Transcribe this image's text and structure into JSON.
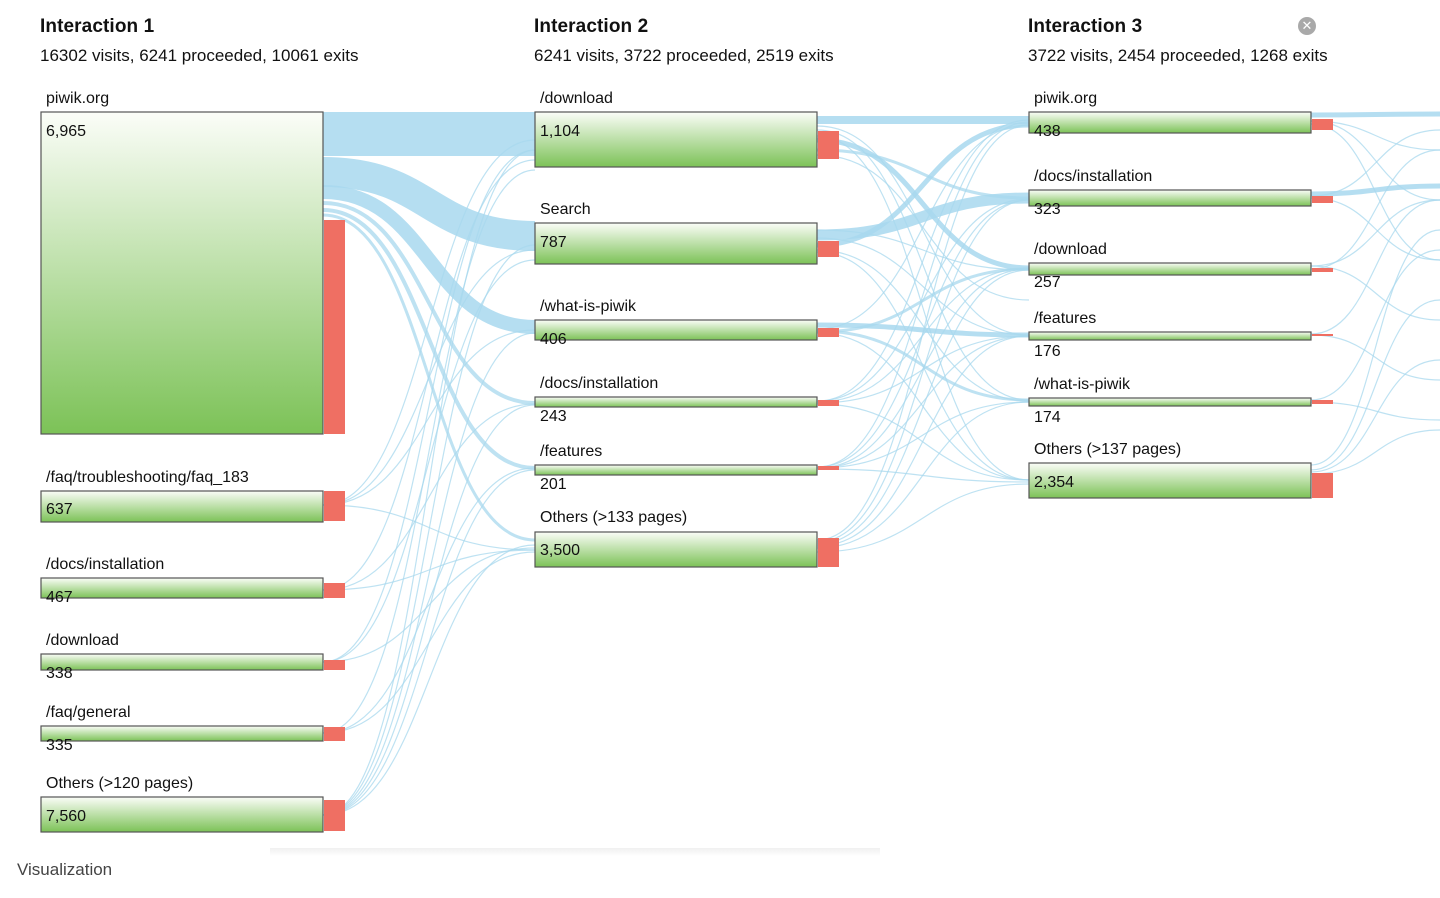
{
  "colors": {
    "link": "#a8d8ee",
    "node_top": "#fbfdf8",
    "node_bottom": "#7cc257",
    "node_border": "#555555",
    "exit": "#ef6f63"
  },
  "close_icon": "close-icon",
  "footer": {
    "label": "Visualization"
  },
  "columns": [
    {
      "title": "Interaction 1",
      "summary": "16302 visits, 6241 proceeded, 10061 exits",
      "nodes": [
        {
          "label": "piwik.org",
          "value": "6,965"
        },
        {
          "label": "/faq/troubleshooting/faq_183",
          "value": "637"
        },
        {
          "label": "/docs/installation",
          "value": "467"
        },
        {
          "label": "/download",
          "value": "338"
        },
        {
          "label": "/faq/general",
          "value": "335"
        },
        {
          "label": "Others (>120 pages)",
          "value": "7,560"
        }
      ]
    },
    {
      "title": "Interaction 2",
      "summary": "6241 visits, 3722 proceeded, 2519 exits",
      "nodes": [
        {
          "label": "/download",
          "value": "1,104"
        },
        {
          "label": "Search",
          "value": "787"
        },
        {
          "label": "/what-is-piwik",
          "value": "406"
        },
        {
          "label": "/docs/installation",
          "value": "243"
        },
        {
          "label": "/features",
          "value": "201"
        },
        {
          "label": "Others (>133 pages)",
          "value": "3,500"
        }
      ]
    },
    {
      "title": "Interaction 3",
      "summary": "3722 visits, 2454 proceeded, 1268 exits",
      "nodes": [
        {
          "label": "piwik.org",
          "value": "438"
        },
        {
          "label": "/docs/installation",
          "value": "323"
        },
        {
          "label": "/download",
          "value": "257"
        },
        {
          "label": "/features",
          "value": "176"
        },
        {
          "label": "/what-is-piwik",
          "value": "174"
        },
        {
          "label": "Others (>137 pages)",
          "value": "2,354"
        }
      ]
    }
  ]
}
